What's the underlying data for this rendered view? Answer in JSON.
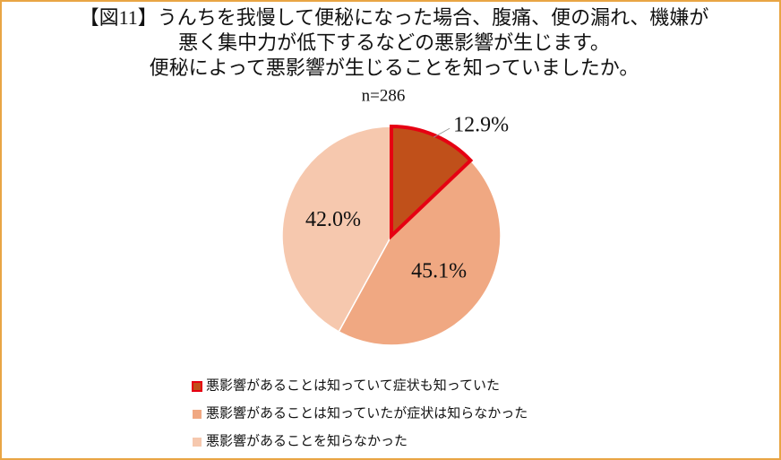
{
  "chart_data": {
    "type": "pie",
    "title": [
      "【図11】うんちを我慢して便秘になった場合、腹痛、便の漏れ、機嫌が",
      "悪く集中力が低下するなどの悪影響が生じます。",
      "便秘によって悪影響が生じることを知っていましたか。"
    ],
    "subtitle": "n=286",
    "categories": [
      "悪影響があることは知っていて症状も知っていた",
      "悪影響があることは知っていたが症状は知らなかった",
      "悪影響があることを知らなかった"
    ],
    "values": [
      12.9,
      45.1,
      42.0
    ],
    "value_labels": [
      "12.9%",
      "45.1%",
      "42.0%"
    ],
    "colors": [
      "#c0501a",
      "#f0a882",
      "#f6c8ae"
    ],
    "edgecolors": [
      "#e60012",
      "#ffffff",
      "#ffffff"
    ],
    "legend": "bottom-left"
  }
}
